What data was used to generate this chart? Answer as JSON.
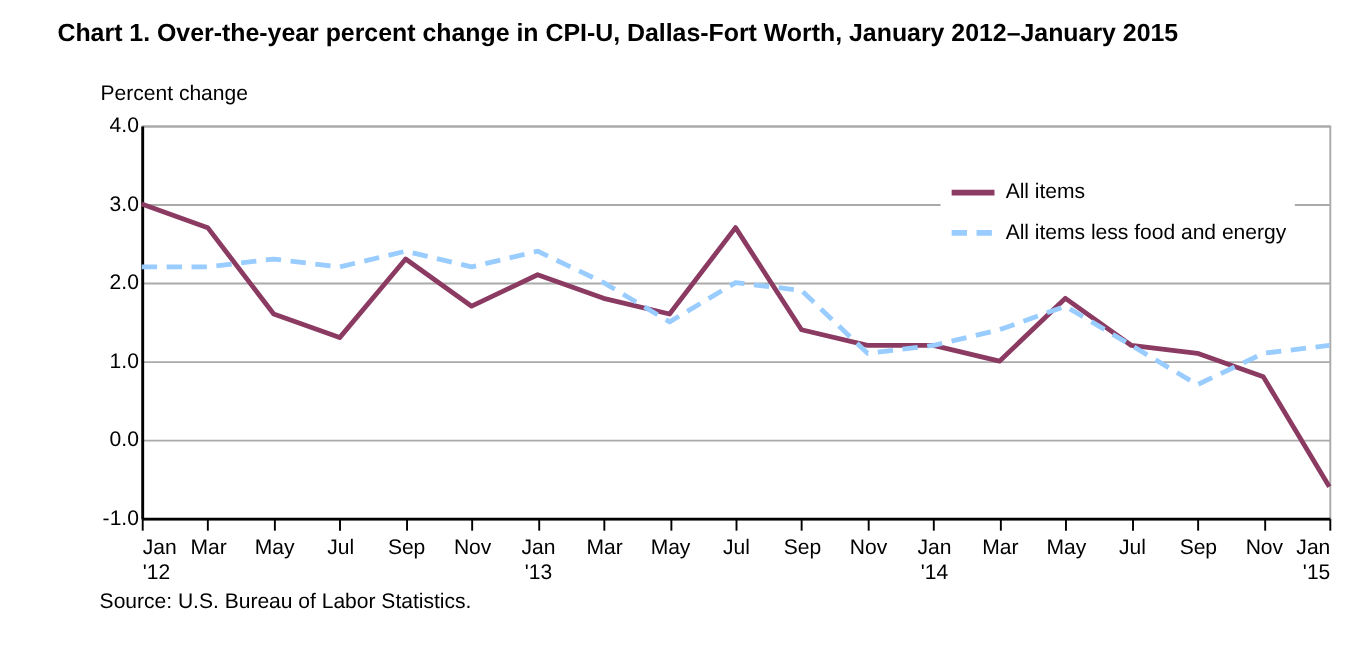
{
  "chart_data": {
    "type": "line",
    "title": "Chart 1. Over-the-year percent change in CPI-U, Dallas-Fort Worth, January 2012–January 2015",
    "ylabel": "Percent change",
    "categories": [
      "Jan\n'12",
      "Mar",
      "May",
      "Jul",
      "Sep",
      "Nov",
      "Jan\n'13",
      "Mar",
      "May",
      "Jul",
      "Sep",
      "Nov",
      "Jan\n'14",
      "Mar",
      "May",
      "Jul",
      "Sep",
      "Nov",
      "Jan\n'15"
    ],
    "series": [
      {
        "name": "All items",
        "color": "#8b3a62",
        "line_style": "solid",
        "values": [
          3.0,
          2.7,
          1.6,
          1.3,
          2.3,
          1.7,
          2.1,
          1.8,
          1.6,
          2.7,
          1.4,
          1.2,
          1.2,
          1.0,
          1.8,
          1.2,
          1.1,
          0.8,
          -0.6
        ]
      },
      {
        "name": "All items less food and energy",
        "color": "#99ccff",
        "line_style": "dashed",
        "values": [
          2.2,
          2.2,
          2.3,
          2.2,
          2.4,
          2.2,
          2.4,
          2.0,
          1.5,
          2.0,
          1.9,
          1.1,
          1.2,
          1.4,
          1.7,
          1.2,
          0.7,
          1.1,
          1.2
        ]
      }
    ],
    "ylim": [
      -1.0,
      4.0
    ],
    "yticks": [
      {
        "value": -1,
        "label": "-1.0"
      },
      {
        "value": 0,
        "label": "0.0"
      },
      {
        "value": 1,
        "label": "1.0"
      },
      {
        "value": 2,
        "label": "2.0"
      },
      {
        "value": 3,
        "label": "3.0"
      },
      {
        "value": 4,
        "label": "4.0"
      }
    ],
    "grid": "y",
    "legend": "top right",
    "marker": "none",
    "annotations": [
      "Source: U.S. Bureau of Labor Statistics."
    ]
  }
}
